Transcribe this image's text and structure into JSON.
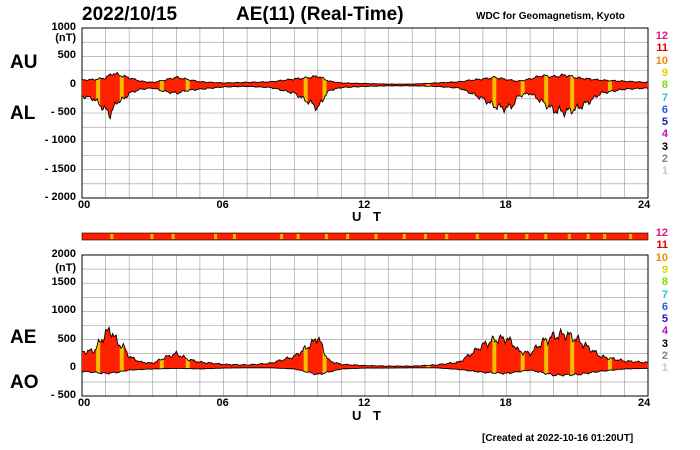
{
  "header": {
    "date": "2022/10/15",
    "title": "AE(11) (Real-Time)",
    "source": "WDC for Geomagnetism, Kyoto"
  },
  "footer": {
    "created": "[Created at 2022-10-16 01:20UT]"
  },
  "legend": {
    "levels": [
      {
        "label": "12",
        "color": "#e8127c"
      },
      {
        "label": "11",
        "color": "#e00000"
      },
      {
        "label": "10",
        "color": "#f08c00"
      },
      {
        "label": "9",
        "color": "#e8d000"
      },
      {
        "label": "8",
        "color": "#80d800"
      },
      {
        "label": "7",
        "color": "#20c8d0"
      },
      {
        "label": "6",
        "color": "#2060e0"
      },
      {
        "label": "5",
        "color": "#2020b0"
      },
      {
        "label": "4",
        "color": "#c010c0"
      },
      {
        "label": "3",
        "color": "#000000"
      },
      {
        "label": "2",
        "color": "#808080"
      },
      {
        "label": "1",
        "color": "#c8c8c8"
      }
    ]
  },
  "colors": {
    "fill_main": "#ff2000",
    "fill_alt": "#f0c000",
    "outline": "#000000",
    "grid": "#999999"
  },
  "chart_data": [
    {
      "type": "area",
      "panel": "upper",
      "title": "AU / AL",
      "upper_label": "AU",
      "lower_label": "AL",
      "unit_label": "(nT)",
      "xlabel": "U T",
      "xlim": [
        0,
        24
      ],
      "ylim": [
        -2000,
        1000
      ],
      "yticks": [
        1000,
        500,
        0,
        -500,
        -1000,
        -1500,
        -2000
      ],
      "ytick_labels": [
        "1000",
        "500",
        "0",
        "- 500",
        "- 1000",
        "- 1500",
        "- 2000"
      ],
      "xtick_labels": [
        "00",
        "06",
        "12",
        "18",
        "24"
      ],
      "series": [
        {
          "name": "AU",
          "x": [
            0,
            0.5,
            1,
            1.3,
            1.5,
            2,
            2.5,
            3,
            3.5,
            4,
            4.5,
            5,
            6,
            7,
            8,
            9,
            9.5,
            10,
            10.5,
            11,
            12,
            13,
            14,
            15,
            16,
            16.5,
            17,
            17.5,
            18,
            18.5,
            19,
            19.5,
            20,
            20.5,
            21,
            21.5,
            22,
            23,
            24
          ],
          "values": [
            80,
            90,
            120,
            200,
            180,
            120,
            60,
            40,
            80,
            130,
            90,
            50,
            30,
            40,
            50,
            100,
            120,
            150,
            60,
            30,
            20,
            10,
            10,
            30,
            50,
            80,
            100,
            130,
            90,
            60,
            100,
            160,
            140,
            170,
            120,
            100,
            80,
            60,
            40
          ]
        },
        {
          "name": "AL",
          "x": [
            0,
            0.5,
            1,
            1.2,
            1.5,
            1.8,
            2,
            2.5,
            3,
            3.5,
            4,
            4.5,
            5,
            6,
            7,
            8,
            9,
            9.5,
            9.8,
            10,
            10.3,
            10.5,
            11,
            12,
            13,
            14,
            15,
            16,
            16.5,
            17,
            17.5,
            18,
            18.3,
            18.5,
            19,
            19.5,
            20,
            20.5,
            21,
            21.5,
            22,
            23,
            24
          ],
          "values": [
            -200,
            -250,
            -450,
            -520,
            -300,
            -250,
            -150,
            -80,
            -60,
            -120,
            -150,
            -100,
            -80,
            -40,
            -30,
            -50,
            -150,
            -280,
            -350,
            -420,
            -200,
            -100,
            -50,
            -30,
            -20,
            -20,
            -30,
            -60,
            -150,
            -250,
            -380,
            -420,
            -350,
            -200,
            -150,
            -300,
            -450,
            -480,
            -420,
            -300,
            -150,
            -80,
            -60
          ]
        }
      ]
    },
    {
      "type": "area",
      "panel": "lower",
      "title": "AE / AO",
      "upper_label": "AE",
      "lower_label": "AO",
      "unit_label": "(nT)",
      "xlabel": "U T",
      "xlim": [
        0,
        24
      ],
      "ylim": [
        -500,
        2000
      ],
      "yticks": [
        2000,
        1500,
        1000,
        500,
        0,
        -500
      ],
      "ytick_labels": [
        "2000",
        "1500",
        "1000",
        "500",
        "0",
        "- 500"
      ],
      "xtick_labels": [
        "00",
        "06",
        "12",
        "18",
        "24"
      ],
      "series": [
        {
          "name": "AE",
          "x": [
            0,
            0.5,
            1,
            1.2,
            1.5,
            1.8,
            2,
            2.5,
            3,
            3.5,
            4,
            4.5,
            5,
            6,
            7,
            8,
            9,
            9.5,
            9.8,
            10,
            10.3,
            10.5,
            11,
            12,
            13,
            14,
            15,
            16,
            16.5,
            17,
            17.5,
            18,
            18.3,
            18.5,
            19,
            19.5,
            20,
            20.5,
            21,
            21.5,
            22,
            23,
            24
          ],
          "values": [
            280,
            300,
            600,
            680,
            450,
            350,
            200,
            100,
            80,
            180,
            250,
            150,
            100,
            60,
            50,
            80,
            200,
            350,
            450,
            560,
            250,
            120,
            60,
            40,
            30,
            30,
            50,
            100,
            250,
            400,
            500,
            520,
            420,
            300,
            250,
            450,
            560,
            600,
            500,
            350,
            200,
            120,
            90
          ]
        },
        {
          "name": "AO",
          "x": [
            0,
            1,
            1.5,
            2,
            3,
            4,
            5,
            6,
            7,
            8,
            9,
            10,
            11,
            12,
            13,
            14,
            15,
            16,
            17,
            18,
            19,
            20,
            21,
            22,
            23,
            24
          ],
          "values": [
            -60,
            -100,
            -80,
            -40,
            -20,
            -10,
            -20,
            -5,
            0,
            0,
            -20,
            -120,
            -20,
            -5,
            -5,
            0,
            0,
            -30,
            -80,
            -100,
            -40,
            -130,
            -120,
            -60,
            -20,
            -10
          ]
        }
      ]
    }
  ],
  "activity_bar": {
    "fill": "#ff2000",
    "alt": "#f0c000"
  }
}
